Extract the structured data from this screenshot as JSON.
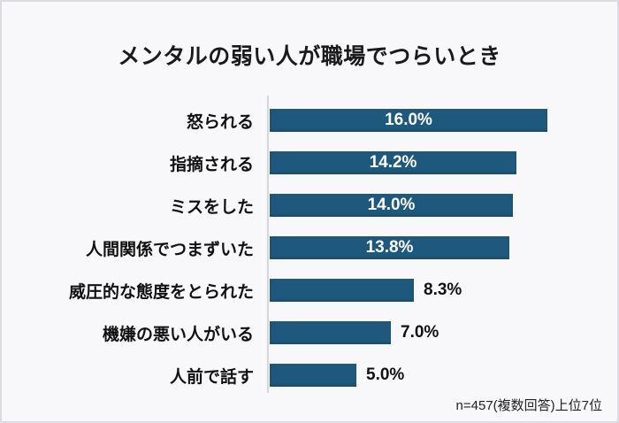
{
  "title": "メンタルの弱い人が職場でつらいとき",
  "footer_note": "n=457(複数回答)上位7位",
  "colors": {
    "background": "#f8f7fa",
    "frame_border": "#dcdbe1",
    "bar": "#1e587d",
    "axis_line": "#d7d6dd",
    "inside_value_label": "#ffffff",
    "outside_value_label": "#111111",
    "text": "#1a1a1a"
  },
  "chart_data": {
    "type": "bar",
    "orientation": "horizontal",
    "title": "メンタルの弱い人が職場でつらいとき",
    "categories": [
      "怒られる",
      "指摘される",
      "ミスをした",
      "人間関係でつまずいた",
      "威圧的な態度をとられた",
      "機嫌の悪い人がいる",
      "人前で話す"
    ],
    "values": [
      16.0,
      14.2,
      14.0,
      13.8,
      8.3,
      7.0,
      5.0
    ],
    "value_labels": [
      "16.0%",
      "14.2%",
      "14.0%",
      "13.8%",
      "8.3%",
      "7.0%",
      "5.0%"
    ],
    "xlabel": "",
    "ylabel": "",
    "xlim": [
      0,
      16.0
    ],
    "grid": false,
    "legend": "none",
    "annotation": "n=457(複数回答)上位7位",
    "inside_label_threshold": 10.0
  }
}
